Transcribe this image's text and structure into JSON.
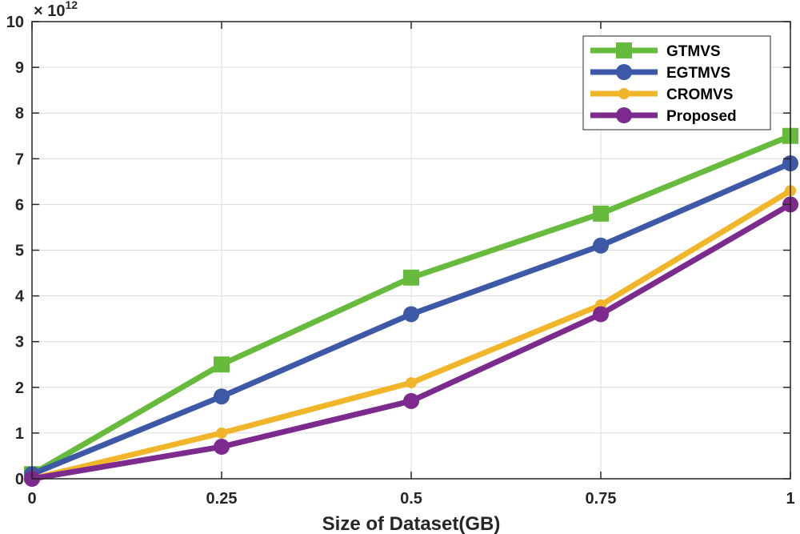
{
  "chart_data": {
    "type": "line",
    "xlabel": "Size of Dataset(GB)",
    "ylabel": "",
    "x": [
      0,
      0.25,
      0.5,
      0.75,
      1
    ],
    "xticks": [
      "0",
      "0.25",
      "0.5",
      "0.75",
      "1"
    ],
    "yticks": [
      "0",
      "1",
      "2",
      "3",
      "4",
      "5",
      "6",
      "7",
      "8",
      "9",
      "10"
    ],
    "y_exponent_label": "× 10",
    "y_exponent_power": "12",
    "xlim": [
      0,
      1
    ],
    "ylim": [
      0,
      10
    ],
    "grid": true,
    "legend_position": "top-right",
    "series": [
      {
        "name": "GTMVS",
        "values": [
          0.1,
          2.5,
          4.4,
          5.8,
          7.5
        ],
        "color": "#66bb3d",
        "marker": "square"
      },
      {
        "name": "EGTMVS",
        "values": [
          0.1,
          1.8,
          3.6,
          5.1,
          6.9
        ],
        "color": "#3c58a6",
        "marker": "circle"
      },
      {
        "name": "CROMVS",
        "values": [
          0.0,
          1.0,
          2.1,
          3.8,
          6.3
        ],
        "color": "#f1b52a",
        "marker": "small-circle"
      },
      {
        "name": "Proposed",
        "values": [
          0.0,
          0.7,
          1.7,
          3.6,
          6.0
        ],
        "color": "#7d2a8e",
        "marker": "circle"
      }
    ]
  }
}
